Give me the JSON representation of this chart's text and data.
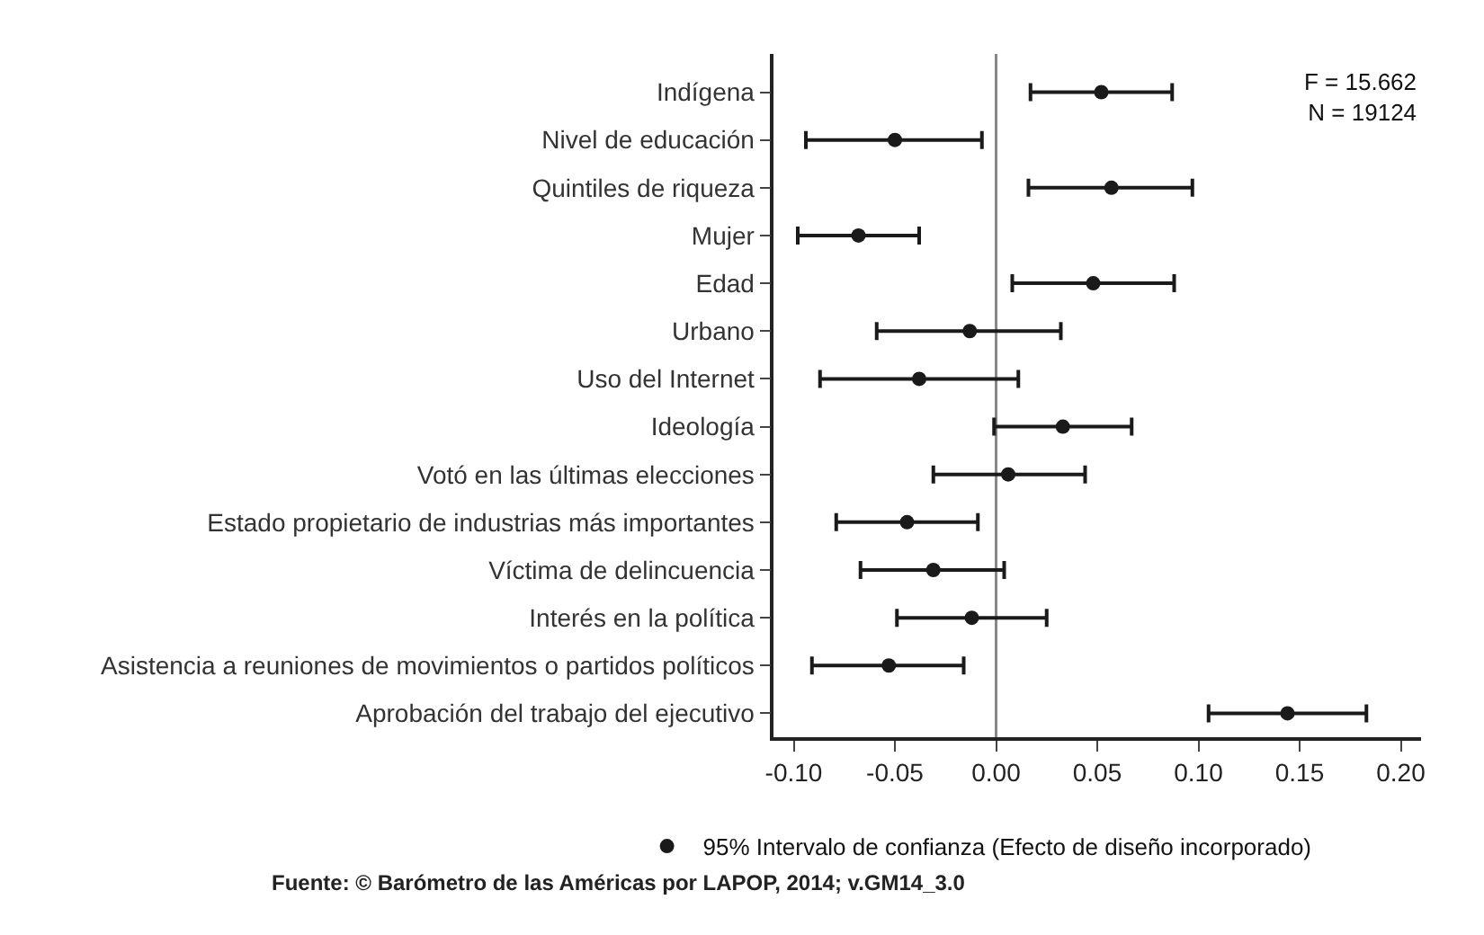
{
  "chart_data": {
    "type": "scatter",
    "orientation": "horizontal",
    "categories": [
      "Indígena",
      "Nivel de educación",
      "Quintiles de riqueza",
      "Mujer",
      "Edad",
      "Urbano",
      "Uso del Internet",
      "Ideología",
      "Votó en las últimas elecciones",
      "Estado propietario de industrias más importantes",
      "Víctima de delincuencia",
      "Interés en la política",
      "Asistencia a reuniones de movimientos o partidos políticos",
      "Aprobación del trabajo del ejecutivo"
    ],
    "series": [
      {
        "name": "95% Intervalo de confianza (Efecto de diseño incorporado)",
        "color": "#1a1a1a",
        "values": [
          0.052,
          -0.05,
          0.057,
          -0.068,
          0.048,
          -0.013,
          -0.038,
          0.033,
          0.006,
          -0.044,
          -0.031,
          -0.012,
          -0.053,
          0.144
        ],
        "errors": [
          [
            0.017,
            0.087
          ],
          [
            -0.094,
            -0.007
          ],
          [
            0.016,
            0.097
          ],
          [
            -0.098,
            -0.038
          ],
          [
            0.008,
            0.088
          ],
          [
            -0.059,
            0.032
          ],
          [
            -0.087,
            0.011
          ],
          [
            -0.001,
            0.067
          ],
          [
            -0.031,
            0.044
          ],
          [
            -0.079,
            -0.009
          ],
          [
            -0.067,
            0.004
          ],
          [
            -0.049,
            0.025
          ],
          [
            -0.091,
            -0.016
          ],
          [
            0.105,
            0.183
          ]
        ]
      }
    ],
    "xlim": [
      -0.11,
      0.21
    ],
    "xticks": [
      {
        "value": -0.1,
        "label": "-0.10"
      },
      {
        "value": -0.05,
        "label": "-0.05"
      },
      {
        "value": 0,
        "label": "0.00"
      },
      {
        "value": 0.05,
        "label": "0.05"
      },
      {
        "value": 0.1,
        "label": "0.10"
      },
      {
        "value": 0.15,
        "label": "0.15"
      },
      {
        "value": 0.2,
        "label": "0.20"
      }
    ],
    "ref_lines": [
      {
        "axis": "x",
        "value": 0,
        "color": "#888888"
      }
    ],
    "annotations": [
      "F = 15.662\nN = 19124",
      "Fuente: © Barómetro de las Américas por LAPOP, 2014; v.GM14_3.0"
    ],
    "marker": "circle",
    "grid": false,
    "legend": "bottom"
  }
}
